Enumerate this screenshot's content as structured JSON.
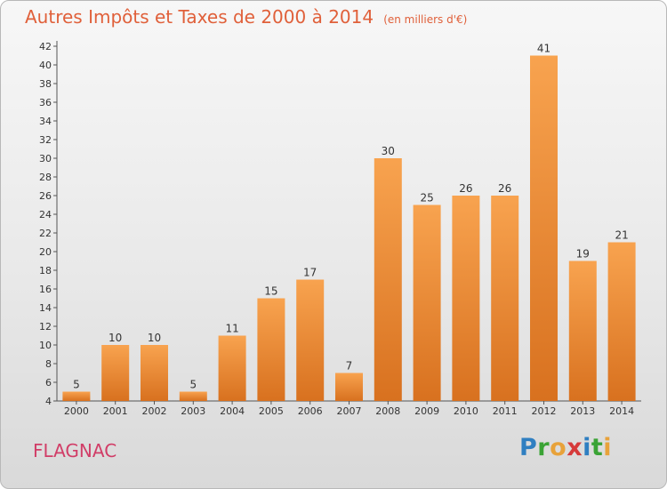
{
  "title": "Autres Impôts et Taxes de 2000 à 2014",
  "subtitle": "(en milliers d'€)",
  "footer": {
    "commune": "FLAGNAC",
    "logo": "Proxiti"
  },
  "colors": {
    "bar_top": "#f8a34f",
    "bar_bottom": "#d8711f",
    "title": "#e0603a",
    "commune": "#d13d67"
  },
  "chart_data": {
    "type": "bar",
    "title": "Autres Impôts et Taxes de 2000 à 2014",
    "subtitle": "(en milliers d'€)",
    "categories": [
      "2000",
      "2001",
      "2002",
      "2003",
      "2004",
      "2005",
      "2006",
      "2007",
      "2008",
      "2009",
      "2010",
      "2011",
      "2012",
      "2013",
      "2014"
    ],
    "values": [
      5,
      10,
      10,
      5,
      11,
      15,
      17,
      7,
      30,
      25,
      26,
      26,
      41,
      19,
      21
    ],
    "xlabel": "",
    "ylabel": "",
    "ylim": [
      4,
      42
    ],
    "yticks": [
      4,
      6,
      8,
      10,
      12,
      14,
      16,
      18,
      20,
      22,
      24,
      26,
      28,
      30,
      32,
      34,
      36,
      38,
      40,
      42
    ],
    "grid": false,
    "data_labels": true
  }
}
